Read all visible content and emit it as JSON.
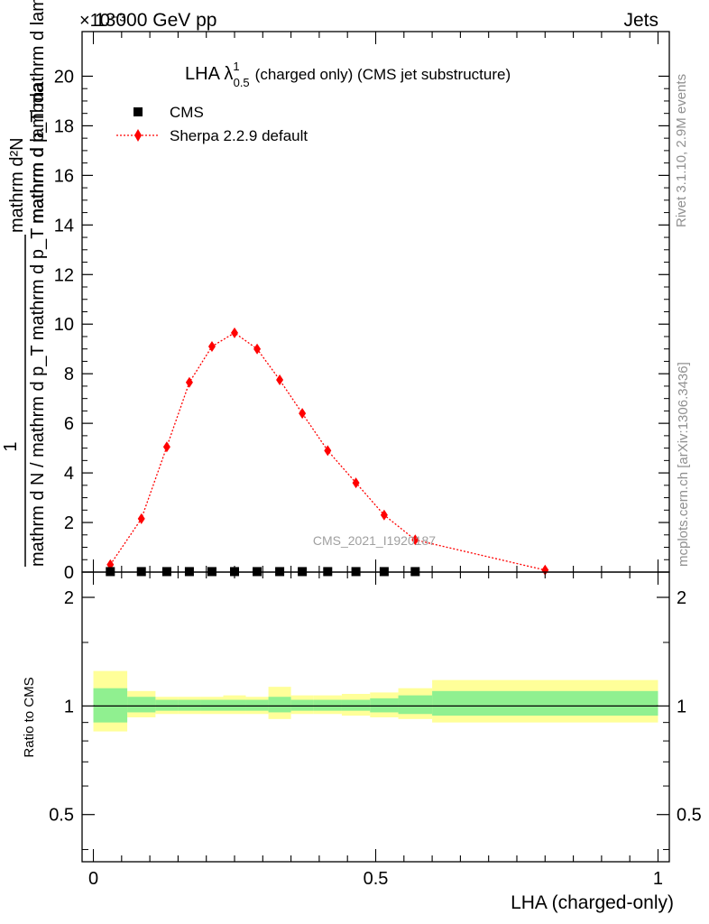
{
  "header": {
    "left": "13000 GeV pp",
    "right": "Jets",
    "exponent_label": "×10⁻³",
    "watermark": "CMS_2021_I1920187"
  },
  "side_labels": {
    "rivet": "Rivet 3.1.10,  2.9M events",
    "mcplots": "mcplots.cern.ch [arXiv:1306.3436]"
  },
  "colors": {
    "mc": "#ff0000",
    "data": "#000000",
    "band_inner": "#90f090",
    "band_outer": "#ffff99"
  },
  "chart_data": [
    {
      "type": "line",
      "title_main": "LHA λ",
      "title_sup": "1",
      "title_sub": "0.5",
      "title_rest": "(charged only) (CMS jet substructure)",
      "ylabel_top": "1",
      "ylabel_frac_num": "mathrm d N / mathrm d p_T mathrm d lambda",
      "ylabel_frac_den": "mathrm d N / mathrm d p_T mathrm d lambda",
      "ylabel_upper": "mathrm d²N",
      "ylabel_upper_den": "mathrm d p_T mathrm d lambda",
      "ylabel_lower": "mathrm d N / mathrm d p_T mathrm d p_T mathrm d lambda",
      "ylim": [
        0,
        21.8
      ],
      "xlim": [
        -0.02,
        1.02
      ],
      "yticks": [
        0,
        2,
        4,
        6,
        8,
        10,
        12,
        14,
        16,
        18,
        20
      ],
      "ytick_labels": [
        "0",
        "2",
        "4",
        "6",
        "8",
        "10",
        "12",
        "14",
        "16",
        "18",
        "20"
      ],
      "legend": [
        {
          "label": "CMS",
          "marker": "square"
        },
        {
          "label": "Sherpa 2.2.9 default",
          "marker": "diamond"
        }
      ],
      "series": [
        {
          "name": "CMS",
          "x": [
            0.03,
            0.085,
            0.13,
            0.17,
            0.21,
            0.25,
            0.29,
            0.33,
            0.37,
            0.415,
            0.465,
            0.515,
            0.57
          ],
          "y": [
            0.02,
            0.02,
            0.02,
            0.02,
            0.02,
            0.02,
            0.02,
            0.02,
            0.02,
            0.02,
            0.02,
            0.02,
            0.02
          ]
        },
        {
          "name": "Sherpa 2.2.9 default",
          "x": [
            0.03,
            0.085,
            0.13,
            0.17,
            0.21,
            0.25,
            0.29,
            0.33,
            0.37,
            0.415,
            0.465,
            0.515,
            0.57,
            0.8
          ],
          "y": [
            0.3,
            2.15,
            5.05,
            7.65,
            9.1,
            9.65,
            9.0,
            7.75,
            6.4,
            4.9,
            3.6,
            2.3,
            1.3,
            0.08
          ]
        }
      ]
    },
    {
      "type": "area",
      "ylabel": "Ratio to CMS",
      "xlabel": "LHA (charged-only)",
      "ylim": [
        0.37,
        2.35
      ],
      "log_y": true,
      "yticks": [
        0.5,
        1,
        2
      ],
      "ytick_labels": [
        "0.5",
        "1",
        "2"
      ],
      "xticks": [
        0,
        0.5,
        1
      ],
      "xtick_labels": [
        "0",
        "0.5",
        "1"
      ],
      "bins": [
        {
          "x0": 0.0,
          "x1": 0.06,
          "inner": [
            0.9,
            1.12
          ],
          "outer": [
            0.85,
            1.25
          ]
        },
        {
          "x0": 0.06,
          "x1": 0.11,
          "inner": [
            0.96,
            1.06
          ],
          "outer": [
            0.93,
            1.1
          ]
        },
        {
          "x0": 0.11,
          "x1": 0.15,
          "inner": [
            0.97,
            1.04
          ],
          "outer": [
            0.95,
            1.06
          ]
        },
        {
          "x0": 0.15,
          "x1": 0.19,
          "inner": [
            0.97,
            1.04
          ],
          "outer": [
            0.95,
            1.06
          ]
        },
        {
          "x0": 0.19,
          "x1": 0.23,
          "inner": [
            0.97,
            1.04
          ],
          "outer": [
            0.95,
            1.06
          ]
        },
        {
          "x0": 0.23,
          "x1": 0.27,
          "inner": [
            0.97,
            1.04
          ],
          "outer": [
            0.95,
            1.07
          ]
        },
        {
          "x0": 0.27,
          "x1": 0.31,
          "inner": [
            0.97,
            1.04
          ],
          "outer": [
            0.95,
            1.06
          ]
        },
        {
          "x0": 0.31,
          "x1": 0.35,
          "inner": [
            0.96,
            1.06
          ],
          "outer": [
            0.92,
            1.13
          ]
        },
        {
          "x0": 0.35,
          "x1": 0.39,
          "inner": [
            0.97,
            1.04
          ],
          "outer": [
            0.95,
            1.07
          ]
        },
        {
          "x0": 0.39,
          "x1": 0.44,
          "inner": [
            0.97,
            1.04
          ],
          "outer": [
            0.95,
            1.07
          ]
        },
        {
          "x0": 0.44,
          "x1": 0.49,
          "inner": [
            0.97,
            1.04
          ],
          "outer": [
            0.94,
            1.08
          ]
        },
        {
          "x0": 0.49,
          "x1": 0.54,
          "inner": [
            0.96,
            1.05
          ],
          "outer": [
            0.93,
            1.09
          ]
        },
        {
          "x0": 0.54,
          "x1": 0.6,
          "inner": [
            0.95,
            1.07
          ],
          "outer": [
            0.92,
            1.12
          ]
        },
        {
          "x0": 0.6,
          "x1": 1.0,
          "inner": [
            0.94,
            1.1
          ],
          "outer": [
            0.9,
            1.18
          ]
        }
      ],
      "ratio_line": 1.0
    }
  ]
}
